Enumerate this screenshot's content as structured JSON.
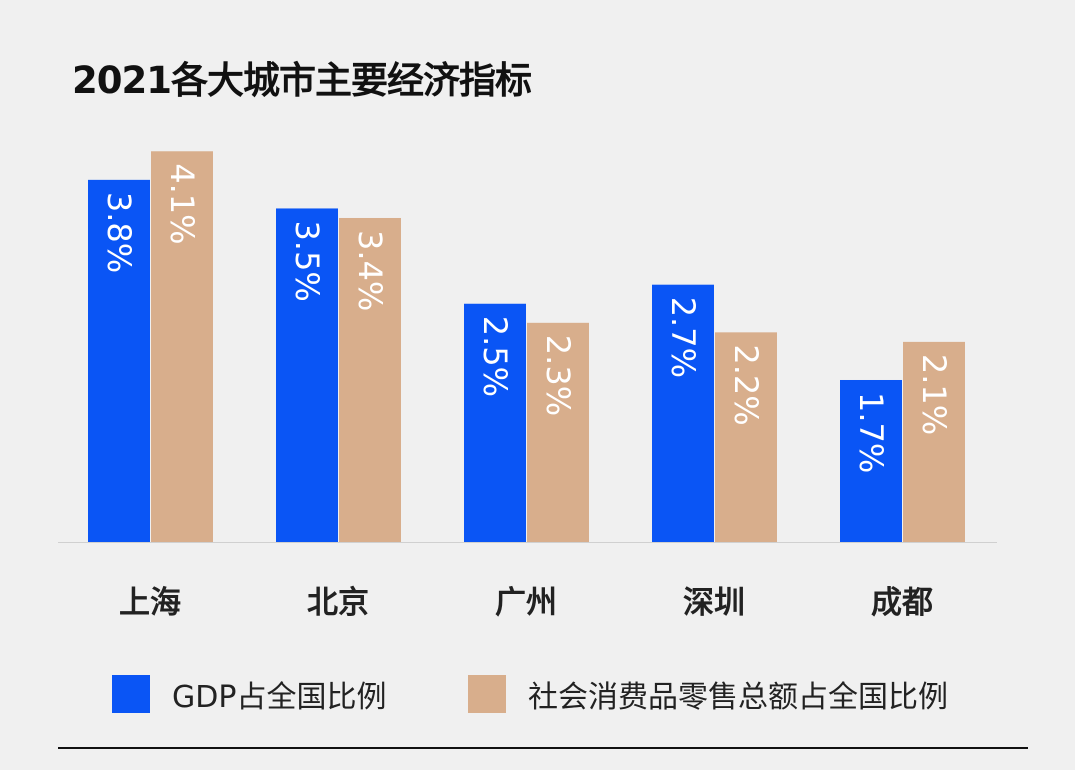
{
  "chart_data": {
    "type": "bar",
    "title": "2021各大城市主要经济指标",
    "categories": [
      "上海",
      "北京",
      "广州",
      "深圳",
      "成都"
    ],
    "series": [
      {
        "name": "GDP占全国比例",
        "color": "#0a55f5",
        "values": [
          3.8,
          3.5,
          2.5,
          2.7,
          1.7
        ],
        "labels": [
          "3.8%",
          "3.5%",
          "2.5%",
          "2.7%",
          "1.7%"
        ]
      },
      {
        "name": "社会消费品零售总额占全国比例",
        "color": "#d8ae8c",
        "values": [
          4.1,
          3.4,
          2.3,
          2.2,
          2.1
        ],
        "labels": [
          "4.1%",
          "3.4%",
          "2.3%",
          "2.2%",
          "2.1%"
        ]
      }
    ],
    "unit": "%",
    "ylim": [
      0,
      4.1
    ],
    "grid": false,
    "legend": "bottom",
    "data_labels": "inside-top-rotated"
  }
}
